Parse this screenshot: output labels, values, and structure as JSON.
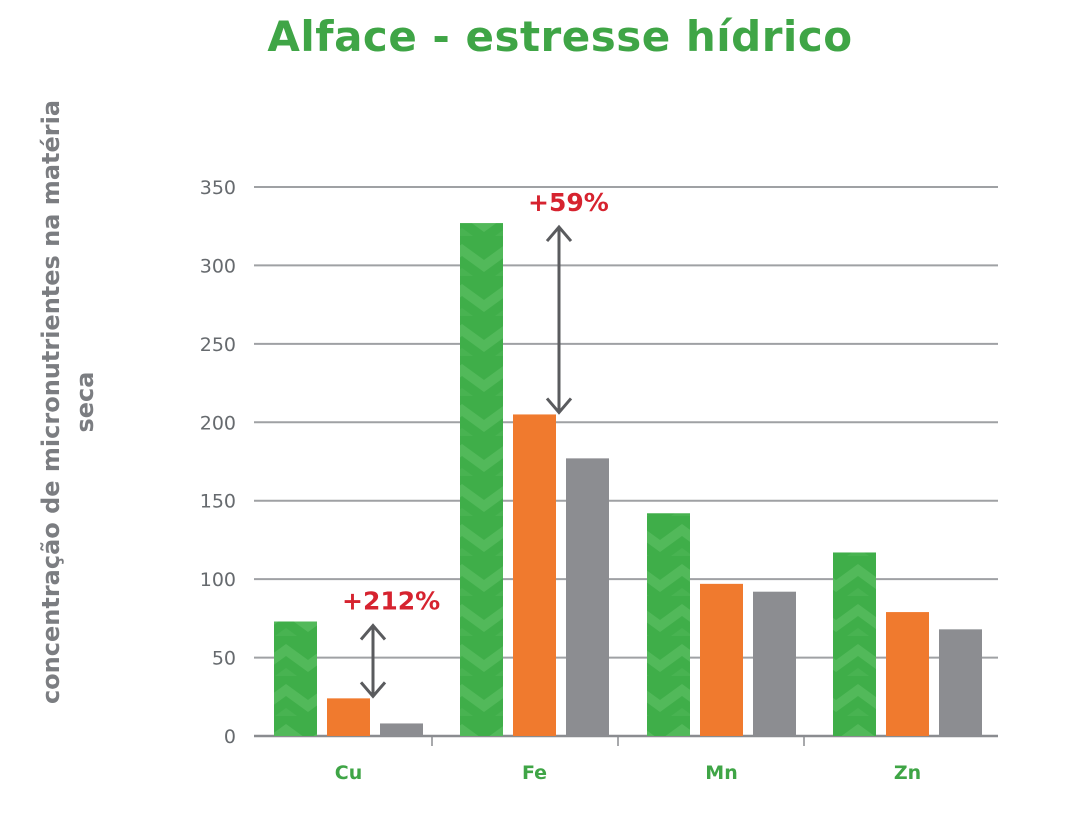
{
  "chart_data": {
    "type": "bar",
    "title": "Alface - estresse hídrico",
    "ylabel": "concentração de micronutrientes na matéria seca",
    "xlabel": "",
    "categories": [
      "Cu",
      "Fe",
      "Mn",
      "Zn"
    ],
    "ylim": [
      0,
      350
    ],
    "yticks": [
      0,
      50,
      100,
      150,
      200,
      250,
      300,
      350
    ],
    "grid": true,
    "series": [
      {
        "values": [
          73,
          327,
          142,
          117
        ],
        "color": "#3fae49"
      },
      {
        "values": [
          24,
          205,
          97,
          79
        ],
        "color": "#f07a2e"
      },
      {
        "values": [
          8,
          177,
          92,
          68
        ],
        "color": "#8c8d91"
      }
    ],
    "annotations": [
      {
        "category": "Cu",
        "text": "+212%",
        "from": 24,
        "to": 73
      },
      {
        "category": "Fe",
        "text": "+59%",
        "from": 205,
        "to": 327
      }
    ]
  }
}
